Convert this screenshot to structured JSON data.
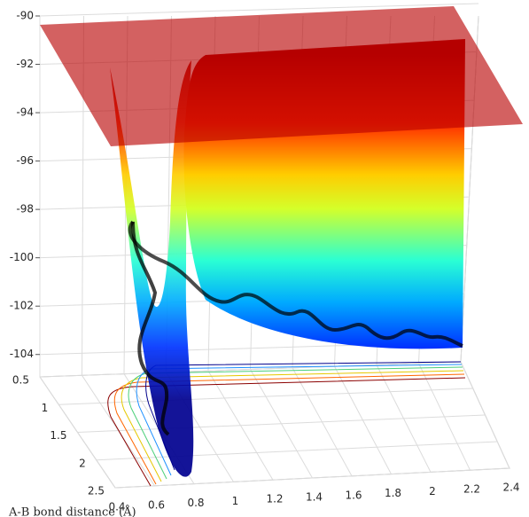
{
  "chart_data": {
    "type": "surface",
    "xlabel": "A-B bond distance (Å)",
    "xlim": [
      0.4,
      2.4
    ],
    "xticks": [
      0.4,
      0.6,
      0.8,
      1,
      1.2,
      1.4,
      1.6,
      1.8,
      2,
      2.2,
      2.4
    ],
    "ylim": [
      0.5,
      2.5
    ],
    "yticks": [
      0.5,
      1,
      1.5,
      2,
      2.5
    ],
    "zlim": [
      -105,
      -90
    ],
    "zticks": [
      -90,
      -92,
      -94,
      -96,
      -98,
      -100,
      -102,
      -104
    ],
    "grid": true
  }
}
